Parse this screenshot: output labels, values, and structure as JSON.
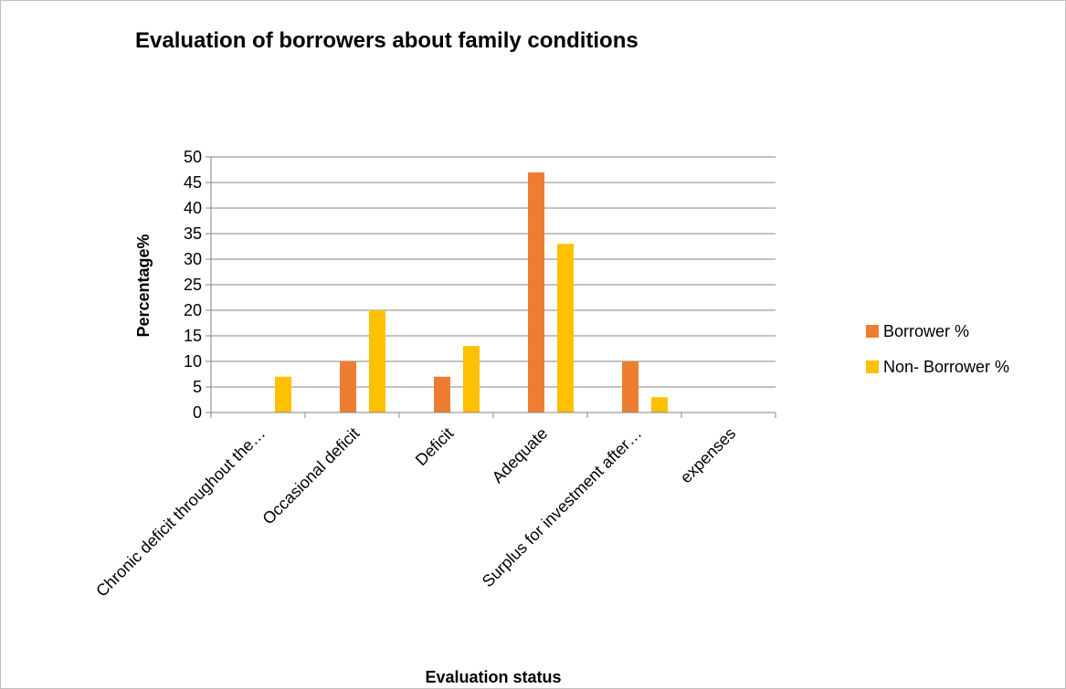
{
  "chart_data": {
    "type": "bar",
    "title": "Evaluation of borrowers about family conditions",
    "xlabel": "Evaluation status",
    "ylabel": "Percentage%",
    "ylim": [
      0,
      50
    ],
    "yticks": [
      0,
      5,
      10,
      15,
      20,
      25,
      30,
      35,
      40,
      45,
      50
    ],
    "grid": true,
    "legend_position": "right",
    "categories": [
      "Chronic deficit throughout the…",
      "Occasional deficit",
      "Deficit",
      "Adequate",
      "Surplus for investment after…",
      "expenses"
    ],
    "series": [
      {
        "name": "Borrower %",
        "color": "#ED7D31",
        "values": [
          0,
          10,
          7,
          47,
          10,
          0
        ]
      },
      {
        "name": "Non- Borrower %",
        "color": "#FFC000",
        "values": [
          7,
          20,
          13,
          33,
          3,
          0
        ]
      }
    ]
  }
}
